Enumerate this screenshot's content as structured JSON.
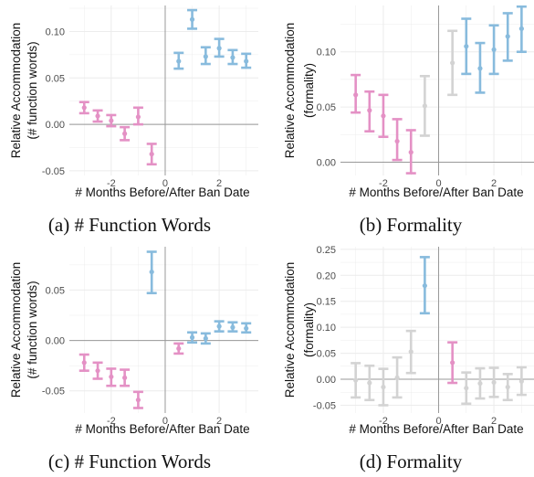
{
  "colors": {
    "before": "#e491c5",
    "after": "#88bbdd",
    "neutral": "#d3d3d3",
    "grid": "#ececec",
    "zero_line": "#999999",
    "ban_line": "#999999"
  },
  "chart_data": [
    {
      "panel": "a",
      "type": "scatter",
      "caption": "(a) # Function Words",
      "xlabel": "# Months Before/After Ban Date",
      "ylabel": [
        "Relative Accommodation",
        "(# function words)"
      ],
      "xlim": [
        -3.55,
        3.45
      ],
      "ylim": [
        -0.055,
        0.128
      ],
      "xticks": [
        -2,
        0,
        2
      ],
      "xtick_labels": [
        "-2",
        "0",
        "2"
      ],
      "yticks": [
        -0.05,
        0.0,
        0.05,
        0.1
      ],
      "ytick_labels": [
        "-0.05",
        "0.00",
        "0.05",
        "0.10"
      ],
      "ban_x": 0,
      "grid": true,
      "points": [
        {
          "x": -3,
          "y": 0.018,
          "lo": 0.012,
          "hi": 0.024,
          "group": "before"
        },
        {
          "x": -2.5,
          "y": 0.009,
          "lo": 0.003,
          "hi": 0.015,
          "group": "before"
        },
        {
          "x": -2,
          "y": 0.004,
          "lo": -0.002,
          "hi": 0.01,
          "group": "before"
        },
        {
          "x": -1.5,
          "y": -0.01,
          "lo": -0.017,
          "hi": -0.003,
          "group": "before"
        },
        {
          "x": -1,
          "y": 0.008,
          "lo": 0.0,
          "hi": 0.018,
          "group": "before"
        },
        {
          "x": -0.5,
          "y": -0.032,
          "lo": -0.043,
          "hi": -0.021,
          "group": "before"
        },
        {
          "x": 0.5,
          "y": 0.068,
          "lo": 0.06,
          "hi": 0.077,
          "group": "after"
        },
        {
          "x": 1,
          "y": 0.113,
          "lo": 0.103,
          "hi": 0.123,
          "group": "after"
        },
        {
          "x": 1.5,
          "y": 0.073,
          "lo": 0.065,
          "hi": 0.083,
          "group": "after"
        },
        {
          "x": 2,
          "y": 0.082,
          "lo": 0.073,
          "hi": 0.092,
          "group": "after"
        },
        {
          "x": 2.5,
          "y": 0.072,
          "lo": 0.065,
          "hi": 0.08,
          "group": "after"
        },
        {
          "x": 3,
          "y": 0.068,
          "lo": 0.061,
          "hi": 0.076,
          "group": "after"
        }
      ]
    },
    {
      "panel": "b",
      "type": "scatter",
      "caption": "(b) Formality",
      "xlabel": "# Months Before/After Ban Date",
      "ylabel": [
        "Relative Accommodation",
        "(formality)"
      ],
      "xlim": [
        -3.55,
        3.45
      ],
      "ylim": [
        -0.012,
        0.142
      ],
      "xticks": [
        -2,
        0,
        2
      ],
      "xtick_labels": [
        "-2",
        "0",
        "2"
      ],
      "yticks": [
        0.0,
        0.05,
        0.1
      ],
      "ytick_labels": [
        "0.00",
        "0.05",
        "0.10"
      ],
      "ban_x": 0,
      "grid": true,
      "points": [
        {
          "x": -3,
          "y": 0.061,
          "lo": 0.045,
          "hi": 0.079,
          "group": "before"
        },
        {
          "x": -2.5,
          "y": 0.047,
          "lo": 0.028,
          "hi": 0.064,
          "group": "before"
        },
        {
          "x": -2,
          "y": 0.042,
          "lo": 0.023,
          "hi": 0.061,
          "group": "before"
        },
        {
          "x": -1.5,
          "y": 0.019,
          "lo": 0.002,
          "hi": 0.039,
          "group": "before"
        },
        {
          "x": -1,
          "y": 0.009,
          "lo": -0.01,
          "hi": 0.029,
          "group": "before"
        },
        {
          "x": -0.5,
          "y": 0.051,
          "lo": 0.024,
          "hi": 0.078,
          "group": "neutral"
        },
        {
          "x": 0.5,
          "y": 0.09,
          "lo": 0.061,
          "hi": 0.119,
          "group": "neutral"
        },
        {
          "x": 1,
          "y": 0.105,
          "lo": 0.08,
          "hi": 0.13,
          "group": "after"
        },
        {
          "x": 1.5,
          "y": 0.085,
          "lo": 0.063,
          "hi": 0.108,
          "group": "after"
        },
        {
          "x": 2,
          "y": 0.102,
          "lo": 0.08,
          "hi": 0.124,
          "group": "after"
        },
        {
          "x": 2.5,
          "y": 0.114,
          "lo": 0.092,
          "hi": 0.135,
          "group": "after"
        },
        {
          "x": 3,
          "y": 0.121,
          "lo": 0.1,
          "hi": 0.141,
          "group": "after"
        }
      ]
    },
    {
      "panel": "c",
      "type": "scatter",
      "caption": "(c) # Function Words",
      "xlabel": "# Months Before/After Ban Date",
      "ylabel": [
        "Relative Accommodation",
        "(# function words)"
      ],
      "xlim": [
        -3.55,
        3.45
      ],
      "ylim": [
        -0.072,
        0.093
      ],
      "xticks": [
        -2,
        0,
        2
      ],
      "xtick_labels": [
        "-2",
        "0",
        "2"
      ],
      "yticks": [
        -0.05,
        0.0,
        0.05
      ],
      "ytick_labels": [
        "-0.05",
        "0.00",
        "0.05"
      ],
      "ban_x": 0,
      "grid": true,
      "points": [
        {
          "x": -3,
          "y": -0.022,
          "lo": -0.03,
          "hi": -0.014,
          "group": "before"
        },
        {
          "x": -2.5,
          "y": -0.03,
          "lo": -0.038,
          "hi": -0.022,
          "group": "before"
        },
        {
          "x": -2,
          "y": -0.036,
          "lo": -0.045,
          "hi": -0.028,
          "group": "before"
        },
        {
          "x": -1.5,
          "y": -0.037,
          "lo": -0.045,
          "hi": -0.029,
          "group": "before"
        },
        {
          "x": -1,
          "y": -0.059,
          "lo": -0.067,
          "hi": -0.051,
          "group": "before"
        },
        {
          "x": -0.5,
          "y": 0.068,
          "lo": 0.047,
          "hi": 0.088,
          "group": "after"
        },
        {
          "x": 0.5,
          "y": -0.008,
          "lo": -0.013,
          "hi": -0.003,
          "group": "before"
        },
        {
          "x": 1,
          "y": 0.003,
          "lo": -0.002,
          "hi": 0.008,
          "group": "after"
        },
        {
          "x": 1.5,
          "y": 0.002,
          "lo": -0.003,
          "hi": 0.007,
          "group": "after"
        },
        {
          "x": 2,
          "y": 0.014,
          "lo": 0.009,
          "hi": 0.019,
          "group": "after"
        },
        {
          "x": 2.5,
          "y": 0.013,
          "lo": 0.009,
          "hi": 0.018,
          "group": "after"
        },
        {
          "x": 3,
          "y": 0.012,
          "lo": 0.008,
          "hi": 0.017,
          "group": "after"
        }
      ]
    },
    {
      "panel": "d",
      "type": "scatter",
      "caption": "(d) Formality",
      "xlabel": "# Months Before/After Ban Date",
      "ylabel": [
        "Relative Accommodation",
        "(formality)"
      ],
      "xlim": [
        -3.55,
        3.45
      ],
      "ylim": [
        -0.065,
        0.255
      ],
      "xticks": [
        -2,
        0,
        2
      ],
      "xtick_labels": [
        "-2",
        "0",
        "2"
      ],
      "yticks": [
        -0.05,
        0.0,
        0.05,
        0.1,
        0.15,
        0.2,
        0.25
      ],
      "ytick_labels": [
        "-0.05",
        "0.00",
        "0.05",
        "0.10",
        "0.15",
        "0.20",
        "0.25"
      ],
      "ban_x": 0,
      "grid": true,
      "points": [
        {
          "x": -3,
          "y": -0.002,
          "lo": -0.035,
          "hi": 0.031,
          "group": "neutral"
        },
        {
          "x": -2.5,
          "y": -0.007,
          "lo": -0.04,
          "hi": 0.026,
          "group": "neutral"
        },
        {
          "x": -2,
          "y": -0.015,
          "lo": -0.05,
          "hi": 0.02,
          "group": "neutral"
        },
        {
          "x": -1.5,
          "y": 0.003,
          "lo": -0.035,
          "hi": 0.042,
          "group": "neutral"
        },
        {
          "x": -1,
          "y": 0.053,
          "lo": 0.012,
          "hi": 0.093,
          "group": "neutral"
        },
        {
          "x": -0.5,
          "y": 0.18,
          "lo": 0.127,
          "hi": 0.235,
          "group": "after"
        },
        {
          "x": 0.5,
          "y": 0.032,
          "lo": -0.007,
          "hi": 0.071,
          "group": "before"
        },
        {
          "x": 1,
          "y": -0.017,
          "lo": -0.047,
          "hi": 0.013,
          "group": "neutral"
        },
        {
          "x": 1.5,
          "y": -0.008,
          "lo": -0.037,
          "hi": 0.021,
          "group": "neutral"
        },
        {
          "x": 2,
          "y": -0.006,
          "lo": -0.034,
          "hi": 0.022,
          "group": "neutral"
        },
        {
          "x": 2.5,
          "y": -0.015,
          "lo": -0.04,
          "hi": 0.01,
          "group": "neutral"
        },
        {
          "x": 3,
          "y": -0.004,
          "lo": -0.03,
          "hi": 0.023,
          "group": "neutral"
        }
      ]
    }
  ]
}
